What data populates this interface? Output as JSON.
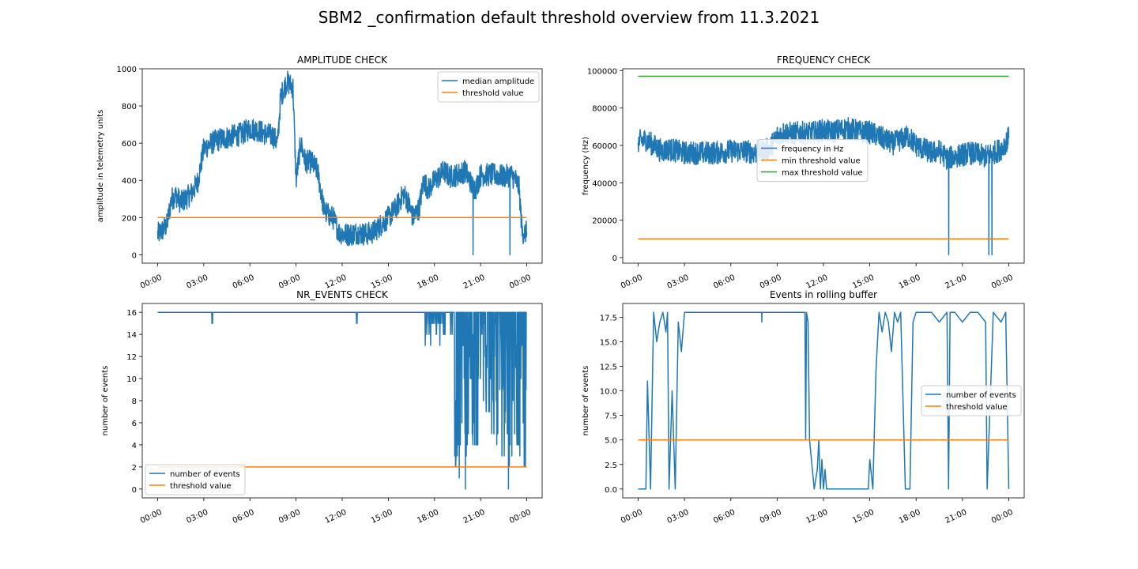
{
  "figure": {
    "suptitle": "SBM2 _confirmation default threshold overview from 11.3.2021",
    "colors": {
      "blue": "#1f77b4",
      "orange": "#ff7f0e",
      "green": "#2ca02c",
      "axis": "#000000"
    }
  },
  "chart_data": [
    {
      "id": "amplitude",
      "type": "line",
      "title": "AMPLITUDE CHECK",
      "xlabel": "",
      "ylabel": "amplitude in telemetry units",
      "xlim": [
        -1,
        25
      ],
      "ylim": [
        -45,
        1000
      ],
      "xticks": [
        0,
        3,
        6,
        9,
        12,
        15,
        18,
        21,
        24
      ],
      "xtick_labels": [
        "00:00",
        "03:00",
        "06:00",
        "09:00",
        "12:00",
        "15:00",
        "18:00",
        "21:00",
        "00:00"
      ],
      "yticks": [
        0,
        200,
        400,
        600,
        800,
        1000
      ],
      "ytick_labels": [
        "0",
        "200",
        "400",
        "600",
        "800",
        "1000"
      ],
      "legend": {
        "position": "upper-right",
        "entries": [
          "median amplitude",
          "threshold value"
        ]
      },
      "series": [
        {
          "name": "median amplitude",
          "color": "#1f77b4",
          "noisy": true,
          "x": [
            0,
            0.3,
            0.6,
            0.9,
            1.2,
            1.5,
            1.8,
            2.2,
            2.6,
            3.0,
            3.5,
            4.0,
            4.5,
            5.0,
            5.5,
            6.0,
            6.5,
            7.0,
            7.5,
            7.8,
            8.0,
            8.4,
            8.8,
            9.0,
            9.3,
            9.6,
            10.0,
            10.4,
            10.8,
            11.0,
            11.4,
            11.8,
            12.2,
            12.6,
            13.0,
            13.5,
            14.0,
            14.5,
            15.0,
            15.5,
            16.0,
            16.3,
            16.6,
            17.0,
            17.3,
            17.6,
            18.0,
            18.3,
            18.6,
            19.0,
            19.5,
            20.0,
            20.3,
            20.5,
            20.7,
            21.0,
            21.5,
            22.0,
            22.5,
            23.0,
            23.3,
            23.5,
            23.7,
            24.0
          ],
          "y": [
            110,
            130,
            160,
            300,
            320,
            280,
            300,
            330,
            390,
            570,
            600,
            620,
            630,
            640,
            650,
            680,
            670,
            650,
            640,
            600,
            850,
            930,
            900,
            400,
            600,
            500,
            500,
            450,
            250,
            220,
            200,
            120,
            110,
            110,
            120,
            110,
            120,
            160,
            200,
            250,
            330,
            280,
            200,
            250,
            400,
            350,
            400,
            420,
            450,
            420,
            430,
            450,
            400,
            360,
            360,
            430,
            430,
            430,
            420,
            430,
            400,
            360,
            120,
            120
          ],
          "spikes": [
            [
              20.5,
              0
            ],
            [
              22.9,
              0
            ],
            [
              13.1,
              100
            ],
            [
              14.0,
              90
            ]
          ]
        },
        {
          "name": "threshold value",
          "color": "#ff7f0e",
          "x": [
            0,
            24
          ],
          "y": [
            200,
            200
          ]
        }
      ]
    },
    {
      "id": "frequency",
      "type": "line",
      "title": "FREQUENCY CHECK",
      "xlabel": "",
      "ylabel": "frequency (Hz)",
      "xlim": [
        -1,
        25
      ],
      "ylim": [
        -3000,
        101000
      ],
      "xticks": [
        0,
        3,
        6,
        9,
        12,
        15,
        18,
        21,
        24
      ],
      "xtick_labels": [
        "00:00",
        "03:00",
        "06:00",
        "09:00",
        "12:00",
        "15:00",
        "18:00",
        "21:00",
        "00:00"
      ],
      "yticks": [
        0,
        20000,
        40000,
        60000,
        80000,
        100000
      ],
      "ytick_labels": [
        "0",
        "20000",
        "40000",
        "60000",
        "80000",
        "100000"
      ],
      "legend": {
        "position": "center",
        "entries": [
          "frequency in Hz",
          "min threshold value",
          "max threshold value"
        ]
      },
      "series": [
        {
          "name": "frequency in Hz",
          "color": "#1f77b4",
          "noisy": true,
          "x": [
            0,
            0.5,
            1.0,
            1.5,
            2.0,
            2.5,
            3.0,
            4.0,
            5.0,
            6.0,
            7.0,
            7.5,
            8.0,
            8.5,
            9.0,
            9.5,
            10.0,
            10.5,
            11.0,
            11.5,
            12.0,
            12.5,
            13.0,
            13.5,
            14.0,
            14.5,
            15.0,
            15.5,
            16.0,
            16.5,
            17.0,
            17.5,
            18.0,
            18.5,
            19.0,
            19.5,
            20.0,
            20.5,
            21.0,
            21.5,
            22.0,
            22.5,
            23.0,
            23.5,
            24.0
          ],
          "y": [
            62000,
            63000,
            60000,
            57000,
            58000,
            57000,
            56000,
            56000,
            56000,
            57000,
            57000,
            56000,
            57000,
            58000,
            65000,
            67000,
            66000,
            67000,
            66000,
            67000,
            68000,
            67000,
            68000,
            69000,
            68000,
            67000,
            67000,
            65000,
            63000,
            61000,
            63000,
            65000,
            60000,
            58000,
            56000,
            57000,
            53000,
            54000,
            55000,
            56000,
            55000,
            54000,
            56000,
            58000,
            64000
          ],
          "spikes": [
            [
              20.1,
              1500
            ],
            [
              22.7,
              1500
            ],
            [
              22.9,
              1500
            ]
          ]
        },
        {
          "name": "min threshold value",
          "color": "#ff7f0e",
          "x": [
            0,
            24
          ],
          "y": [
            10000,
            10000
          ]
        },
        {
          "name": "max threshold value",
          "color": "#2ca02c",
          "x": [
            0,
            24
          ],
          "y": [
            97000,
            97000
          ]
        }
      ]
    },
    {
      "id": "nr_events",
      "type": "line",
      "title": "NR_EVENTS CHECK",
      "xlabel": "",
      "ylabel": "number of events",
      "xlim": [
        -1,
        25
      ],
      "ylim": [
        -0.8,
        16.8
      ],
      "xticks": [
        0,
        3,
        6,
        9,
        12,
        15,
        18,
        21,
        24
      ],
      "xtick_labels": [
        "00:00",
        "03:00",
        "06:00",
        "09:00",
        "12:00",
        "15:00",
        "18:00",
        "21:00",
        "00:00"
      ],
      "yticks": [
        0,
        2,
        4,
        6,
        8,
        10,
        12,
        14,
        16
      ],
      "ytick_labels": [
        "0",
        "2",
        "4",
        "6",
        "8",
        "10",
        "12",
        "14",
        "16"
      ],
      "legend": {
        "position": "lower-left",
        "entries": [
          "number of events",
          "threshold value"
        ]
      },
      "series": [
        {
          "name": "number of events",
          "color": "#1f77b4",
          "noisy": true,
          "x": [
            0,
            3.5,
            3.55,
            3.6,
            12.9,
            12.95,
            13.0,
            17.4,
            17.5,
            17.7,
            17.9,
            18.3,
            18.8,
            19.2,
            19.5,
            19.8,
            20.1,
            20.4,
            20.8,
            21.2,
            21.6,
            22.0,
            22.4,
            22.8,
            23.2,
            23.6,
            24.0
          ],
          "y": [
            16,
            16,
            15,
            16,
            16,
            15,
            16,
            16,
            15,
            16,
            14,
            16,
            15,
            12,
            8,
            6,
            10,
            9,
            11,
            8,
            10,
            9,
            12,
            8,
            10,
            11,
            16
          ],
          "spikes": [
            [
              20.0,
              0
            ],
            [
              22.8,
              0
            ],
            [
              19.6,
              1
            ]
          ]
        },
        {
          "name": "threshold value",
          "color": "#ff7f0e",
          "x": [
            0,
            24
          ],
          "y": [
            2,
            2
          ]
        }
      ]
    },
    {
      "id": "rolling",
      "type": "line",
      "title": "Events in rolling buffer",
      "xlabel": "",
      "ylabel": "number of events",
      "xlim": [
        -1,
        25
      ],
      "ylim": [
        -0.9,
        18.9
      ],
      "xticks": [
        0,
        3,
        6,
        9,
        12,
        15,
        18,
        21,
        24
      ],
      "xtick_labels": [
        "00:00",
        "03:00",
        "06:00",
        "09:00",
        "12:00",
        "15:00",
        "18:00",
        "21:00",
        "00:00"
      ],
      "yticks": [
        0,
        2.5,
        5,
        7.5,
        10,
        12.5,
        15,
        17.5
      ],
      "ytick_labels": [
        "0.0",
        "2.5",
        "5.0",
        "7.5",
        "10.0",
        "12.5",
        "15.0",
        "17.5"
      ],
      "legend": {
        "position": "center-right",
        "entries": [
          "number of events",
          "threshold value"
        ]
      },
      "series": [
        {
          "name": "number of events",
          "color": "#1f77b4",
          "noisy": false,
          "x": [
            0,
            0.5,
            0.6,
            0.8,
            1.0,
            1.2,
            1.4,
            1.6,
            1.8,
            1.9,
            2.0,
            2.2,
            2.4,
            2.6,
            2.8,
            3.0,
            5.0,
            8.0,
            8.01,
            8.02,
            10.8,
            10.85,
            10.9,
            11.0,
            11.1,
            11.4,
            11.6,
            11.7,
            11.8,
            11.9,
            12.0,
            12.1,
            12.2,
            12.6,
            13.0,
            14.0,
            14.9,
            15.0,
            15.2,
            15.4,
            15.6,
            15.8,
            16.0,
            16.2,
            16.4,
            16.6,
            16.8,
            17.0,
            17.3,
            17.6,
            17.8,
            18.0,
            18.5,
            19.0,
            19.5,
            20.0,
            20.1,
            20.2,
            20.5,
            21.0,
            21.5,
            22.0,
            22.5,
            22.6,
            23.0,
            23.5,
            23.8,
            24.0
          ],
          "y": [
            0,
            0,
            11,
            0,
            18,
            15,
            17,
            18,
            16,
            18,
            0,
            10,
            0,
            17,
            14,
            18,
            18,
            18,
            17,
            18,
            18,
            5,
            18,
            17,
            5,
            0,
            2,
            5,
            0,
            3,
            0,
            2,
            0,
            0,
            0,
            0,
            0,
            3,
            0,
            12,
            18,
            16,
            18,
            17,
            14,
            18,
            17,
            18,
            0,
            0,
            17,
            18,
            18,
            18,
            17,
            18,
            0,
            18,
            18,
            17,
            18,
            18,
            17,
            0,
            18,
            17,
            18,
            0
          ]
        },
        {
          "name": "threshold value",
          "color": "#ff7f0e",
          "x": [
            0,
            24
          ],
          "y": [
            5,
            5
          ]
        }
      ]
    }
  ]
}
